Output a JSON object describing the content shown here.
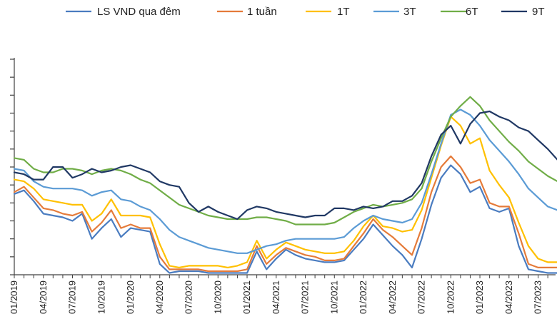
{
  "chart_data": {
    "type": "line",
    "title": "",
    "xlabel": "",
    "ylabel": "",
    "legend_position": "top",
    "grid": false,
    "ylim": [
      0,
      12
    ],
    "x": [
      "01/2019",
      "02/2019",
      "03/2019",
      "04/2019",
      "05/2019",
      "06/2019",
      "07/2019",
      "08/2019",
      "09/2019",
      "10/2019",
      "11/2019",
      "12/2019",
      "01/2020",
      "02/2020",
      "03/2020",
      "04/2020",
      "05/2020",
      "06/2020",
      "07/2020",
      "08/2020",
      "09/2020",
      "10/2020",
      "11/2020",
      "12/2020",
      "01/2021",
      "02/2021",
      "03/2021",
      "04/2021",
      "05/2021",
      "06/2021",
      "07/2021",
      "08/2021",
      "09/2021",
      "10/2021",
      "11/2021",
      "12/2021",
      "01/2022",
      "02/2022",
      "03/2022",
      "04/2022",
      "05/2022",
      "06/2022",
      "07/2022",
      "08/2022",
      "09/2022",
      "10/2022",
      "11/2022",
      "12/2022",
      "01/2023",
      "02/2023",
      "03/2023",
      "04/2023",
      "05/2023",
      "06/2023",
      "07/2023",
      "08/2023",
      "09/2023"
    ],
    "x_tick_labels": [
      "01/2019",
      "04/2019",
      "07/2019",
      "10/2019",
      "01/2020",
      "04/2020",
      "07/2020",
      "10/2020",
      "01/2021",
      "04/2021",
      "07/2021",
      "10/2021",
      "01/2022",
      "04/2022",
      "07/2022",
      "10/2022",
      "01/2023",
      "04/2023",
      "07/2023"
    ],
    "series": [
      {
        "name": "LS VND qua đêm",
        "color": "#4a7cc0",
        "values": [
          4.5,
          4.7,
          4.1,
          3.4,
          3.3,
          3.2,
          3.0,
          3.4,
          2.0,
          2.6,
          3.1,
          2.1,
          2.6,
          2.5,
          2.4,
          0.6,
          0.1,
          0.2,
          0.2,
          0.2,
          0.1,
          0.1,
          0.1,
          0.1,
          0.1,
          1.3,
          0.3,
          0.9,
          1.4,
          1.1,
          0.9,
          0.8,
          0.7,
          0.7,
          0.8,
          1.4,
          2.0,
          2.8,
          2.2,
          1.6,
          1.1,
          0.4,
          2.0,
          3.9,
          5.4,
          6.1,
          5.6,
          4.6,
          4.9,
          3.7,
          3.5,
          3.7,
          1.6,
          0.3,
          0.2,
          0.1,
          0.1
        ]
      },
      {
        "name": "1 tuần",
        "color": "#e57b3a",
        "values": [
          4.6,
          4.9,
          4.3,
          3.7,
          3.6,
          3.4,
          3.3,
          3.5,
          2.4,
          2.9,
          3.6,
          2.6,
          2.8,
          2.6,
          2.6,
          1.0,
          0.3,
          0.3,
          0.3,
          0.3,
          0.2,
          0.2,
          0.2,
          0.2,
          0.3,
          1.6,
          0.6,
          1.1,
          1.5,
          1.3,
          1.1,
          1.0,
          0.8,
          0.8,
          0.9,
          1.6,
          2.3,
          3.1,
          2.5,
          2.1,
          1.6,
          1.1,
          2.6,
          4.6,
          6.0,
          6.6,
          6.0,
          5.1,
          5.3,
          4.0,
          3.8,
          3.8,
          2.3,
          0.6,
          0.4,
          0.4,
          0.4
        ]
      },
      {
        "name": "1T",
        "color": "#ffc000",
        "values": [
          5.3,
          5.2,
          4.8,
          4.2,
          4.1,
          4.0,
          3.9,
          3.9,
          3.0,
          3.4,
          4.2,
          3.3,
          3.3,
          3.3,
          3.2,
          1.7,
          0.5,
          0.4,
          0.5,
          0.5,
          0.5,
          0.5,
          0.4,
          0.5,
          0.7,
          1.9,
          0.9,
          1.4,
          1.8,
          1.6,
          1.4,
          1.3,
          1.2,
          1.2,
          1.3,
          1.9,
          2.7,
          3.3,
          2.7,
          2.6,
          2.4,
          2.5,
          3.6,
          5.4,
          7.2,
          8.8,
          8.3,
          7.3,
          7.6,
          5.8,
          5.0,
          4.3,
          2.9,
          1.6,
          0.9,
          0.7,
          0.7
        ]
      },
      {
        "name": "3T",
        "color": "#5b9bd5",
        "values": [
          5.9,
          5.8,
          5.2,
          4.9,
          4.8,
          4.8,
          4.8,
          4.7,
          4.4,
          4.6,
          4.7,
          4.2,
          4.1,
          3.8,
          3.6,
          3.1,
          2.5,
          2.1,
          1.9,
          1.7,
          1.5,
          1.4,
          1.3,
          1.2,
          1.2,
          1.4,
          1.6,
          1.7,
          1.9,
          2.0,
          2.0,
          2.0,
          2.0,
          2.0,
          2.1,
          2.6,
          3.0,
          3.3,
          3.1,
          3.0,
          2.9,
          3.1,
          4.0,
          5.6,
          7.3,
          8.9,
          9.2,
          8.9,
          8.3,
          7.5,
          6.9,
          6.3,
          5.6,
          4.8,
          4.3,
          3.8,
          3.6
        ]
      },
      {
        "name": "6T",
        "color": "#70ad47",
        "values": [
          6.5,
          6.4,
          5.9,
          5.7,
          5.7,
          5.9,
          5.9,
          5.8,
          5.6,
          5.8,
          5.9,
          5.8,
          5.6,
          5.3,
          5.1,
          4.7,
          4.3,
          3.9,
          3.7,
          3.5,
          3.3,
          3.2,
          3.1,
          3.1,
          3.1,
          3.2,
          3.2,
          3.1,
          3.0,
          2.8,
          2.8,
          2.8,
          2.8,
          2.9,
          3.2,
          3.5,
          3.7,
          3.9,
          3.8,
          3.9,
          4.0,
          4.2,
          4.8,
          6.3,
          7.6,
          8.8,
          9.4,
          9.9,
          9.4,
          8.6,
          8.0,
          7.4,
          6.9,
          6.3,
          5.9,
          5.5,
          5.2
        ]
      },
      {
        "name": "9T",
        "color": "#203864",
        "values": [
          5.7,
          5.6,
          5.3,
          5.3,
          6.0,
          6.0,
          5.4,
          5.6,
          5.9,
          5.7,
          5.8,
          6.0,
          6.1,
          5.9,
          5.7,
          5.2,
          5.0,
          4.9,
          4.0,
          3.5,
          3.8,
          3.5,
          3.3,
          3.1,
          3.6,
          3.8,
          3.7,
          3.5,
          3.4,
          3.3,
          3.2,
          3.3,
          3.3,
          3.7,
          3.7,
          3.6,
          3.8,
          3.7,
          3.8,
          4.1,
          4.1,
          4.4,
          5.1,
          6.6,
          7.8,
          8.3,
          7.3,
          8.4,
          9.0,
          9.1,
          8.8,
          8.6,
          8.2,
          8.0,
          7.5,
          7.0,
          6.4
        ]
      }
    ]
  }
}
